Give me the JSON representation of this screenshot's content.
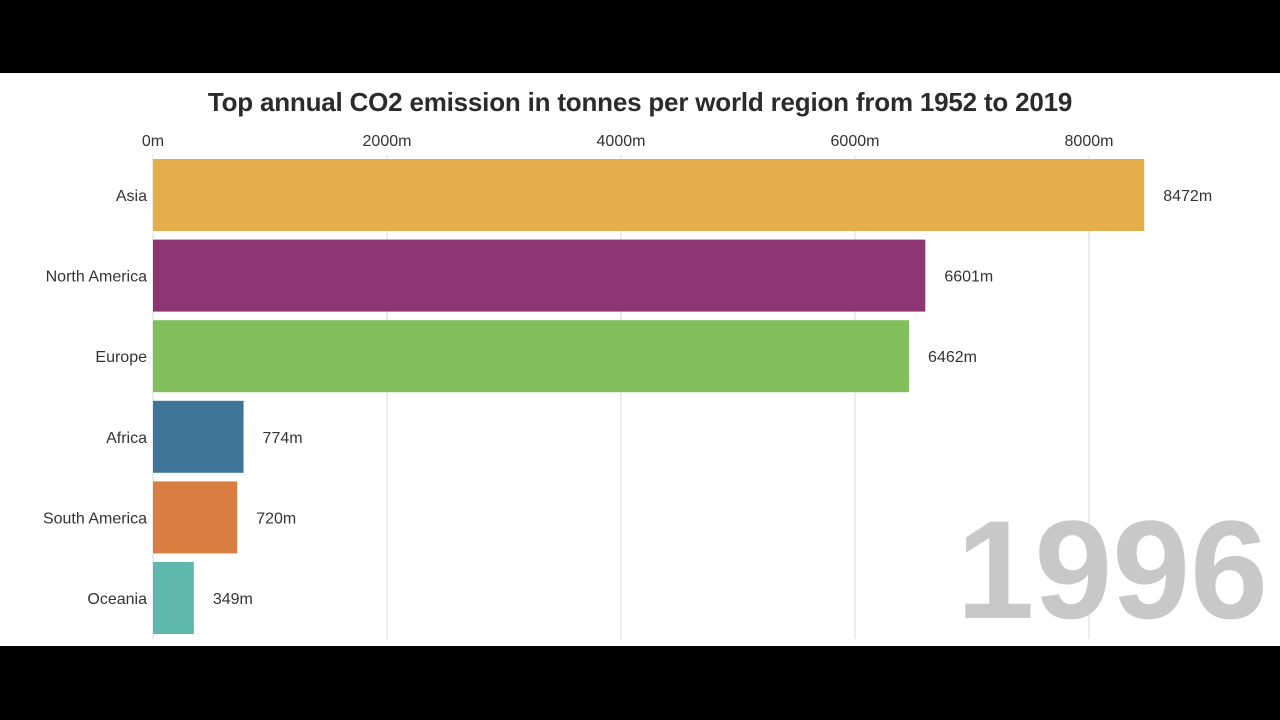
{
  "chart_data": {
    "type": "bar",
    "orientation": "horizontal",
    "title": "Top annual CO2 emission in tonnes per world region from 1952 to 2019",
    "categories": [
      "Asia",
      "North America",
      "Europe",
      "Africa",
      "South America",
      "Oceania"
    ],
    "values": [
      8472,
      6601,
      6462,
      774,
      720,
      349
    ],
    "value_labels": [
      "8472m",
      "6601m",
      "6462m",
      "774m",
      "720m",
      "349m"
    ],
    "colors": [
      "#e4af4a",
      "#8e3674",
      "#80bf5b",
      "#3f7598",
      "#d97e42",
      "#5eb8ad"
    ],
    "xlim": [
      0,
      8600
    ],
    "x_ticks": [
      0,
      2000,
      4000,
      6000,
      8000
    ],
    "x_tick_labels": [
      "0m",
      "2000m",
      "4000m",
      "6000m",
      "8000m"
    ],
    "axis_position": "top",
    "grid": true,
    "year": "1996",
    "xlabel": "",
    "ylabel": ""
  },
  "colors": {
    "background": "#ffffff",
    "letterbox": "#000000",
    "grid": "#e6e6e6",
    "year_text": "#c8c8c8"
  }
}
